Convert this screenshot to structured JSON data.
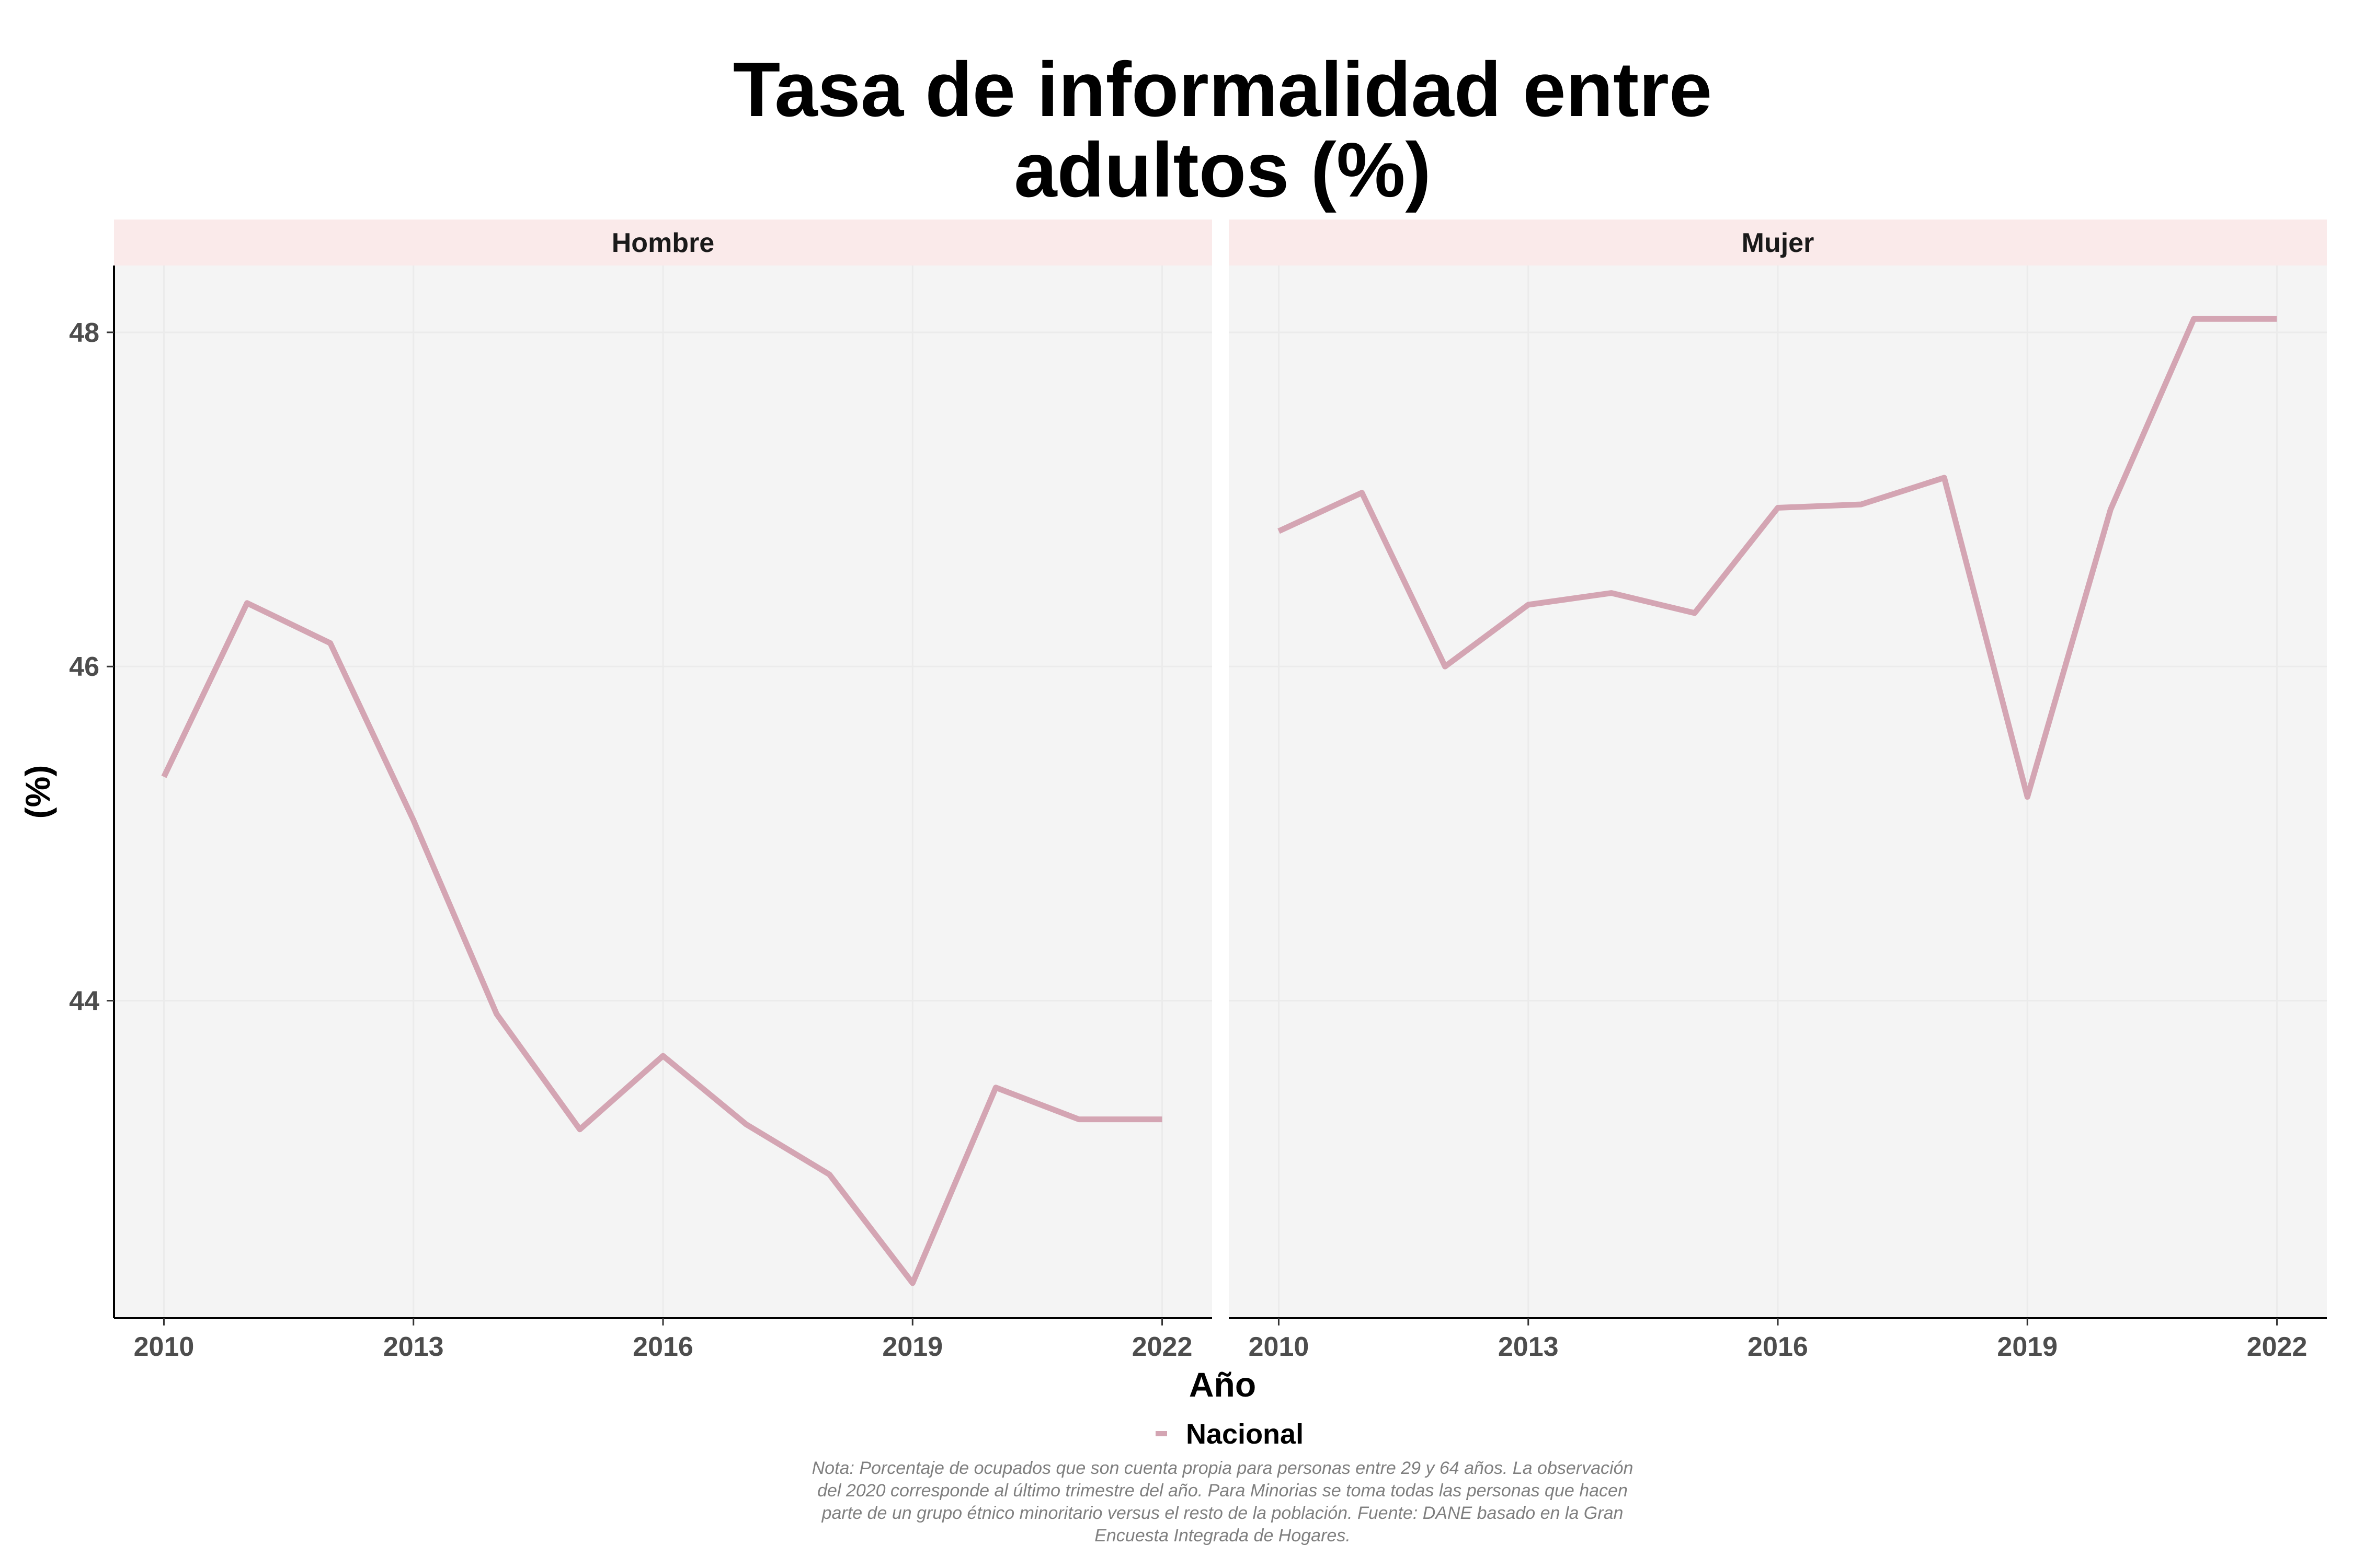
{
  "chart_data": {
    "type": "line",
    "title": [
      "Tasa de informalidad entre",
      "adultos (%)"
    ],
    "xlabel": "Año",
    "ylabel": "(%)",
    "x_ticks": [
      2010,
      2013,
      2016,
      2019,
      2022
    ],
    "y_ticks": [
      44,
      46,
      48
    ],
    "xlim": [
      2009.4,
      2022.6
    ],
    "ylim": [
      42.1,
      48.4
    ],
    "grid": true,
    "legend": {
      "position": "bottom",
      "entries": [
        "Nacional"
      ]
    },
    "line_color": "#d4a5b3",
    "panel_background": "#f4f4f4",
    "strip_background": "#faeaea",
    "x": [
      2010,
      2011,
      2012,
      2013,
      2014,
      2015,
      2016,
      2017,
      2018,
      2019,
      2020,
      2021,
      2022
    ],
    "panels": [
      {
        "label": "Hombre",
        "series": [
          {
            "name": "Nacional",
            "values": [
              45.34,
              46.38,
              46.14,
              45.08,
              43.92,
              43.23,
              43.67,
              43.26,
              42.96,
              42.31,
              43.48,
              43.29,
              43.29
            ]
          }
        ]
      },
      {
        "label": "Mujer",
        "series": [
          {
            "name": "Nacional",
            "values": [
              46.81,
              47.04,
              46.0,
              46.37,
              46.44,
              46.32,
              46.95,
              46.97,
              47.13,
              45.22,
              46.94,
              48.08,
              48.08
            ]
          }
        ]
      }
    ],
    "note": [
      "Nota: Porcentaje de ocupados que son cuenta propia para personas entre 29 y 64 años. La observación",
      "del 2020 corresponde al último trimestre del año. Para Minorias se toma todas las personas que hacen",
      "parte de un grupo étnico minoritario versus el resto de la población. Fuente: DANE basado en la Gran",
      "Encuesta Integrada de Hogares."
    ]
  }
}
